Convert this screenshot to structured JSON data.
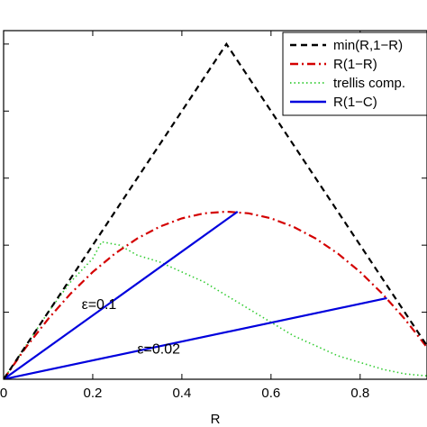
{
  "chart_data": {
    "type": "line",
    "title": "",
    "xlabel": "R",
    "ylabel": "",
    "xlim": [
      0,
      0.95
    ],
    "ylim": [
      0,
      0.52
    ],
    "xticks": [
      0,
      0.2,
      0.4,
      0.6,
      0.8
    ],
    "xtick_labels": [
      "0",
      "0.2",
      "0.4",
      "0.6",
      "0.8"
    ],
    "yticks": [
      0.1,
      0.2,
      0.3,
      0.4,
      0.5
    ],
    "grid": false,
    "legend_position": "top-right",
    "series": [
      {
        "name": "min(R,1−R)",
        "color": "#000000",
        "style": "dashed",
        "x": [
          0,
          0.5,
          1.0
        ],
        "y": [
          0,
          0.5,
          0
        ]
      },
      {
        "name": "R(1−R)",
        "color": "#d40000",
        "style": "dashdot",
        "x": [
          0,
          0.05,
          0.1,
          0.15,
          0.2,
          0.25,
          0.3,
          0.35,
          0.4,
          0.45,
          0.5,
          0.55,
          0.6,
          0.65,
          0.7,
          0.75,
          0.8,
          0.85,
          0.9,
          0.95,
          1.0
        ],
        "y": [
          0,
          0.0475,
          0.09,
          0.1275,
          0.16,
          0.1875,
          0.21,
          0.2275,
          0.24,
          0.2475,
          0.25,
          0.2475,
          0.24,
          0.2275,
          0.21,
          0.1875,
          0.16,
          0.1275,
          0.09,
          0.0475,
          0
        ]
      },
      {
        "name": "trellis comp.",
        "color": "#33cc33",
        "style": "dotted",
        "x": [
          0,
          0.05,
          0.1,
          0.15,
          0.2,
          0.22,
          0.26,
          0.3,
          0.35,
          0.4,
          0.45,
          0.5,
          0.55,
          0.6,
          0.65,
          0.7,
          0.75,
          0.8,
          0.85,
          0.9,
          0.95
        ],
        "y": [
          0,
          0.05,
          0.1,
          0.145,
          0.18,
          0.205,
          0.2,
          0.185,
          0.175,
          0.16,
          0.145,
          0.125,
          0.105,
          0.085,
          0.065,
          0.05,
          0.035,
          0.025,
          0.015,
          0.008,
          0.005
        ]
      },
      {
        "name": "R(1−C)",
        "color": "#0000dd",
        "style": "solid",
        "segments": [
          {
            "x": [
              0,
              0.525
            ],
            "y": [
              0,
              0.25
            ]
          },
          {
            "x": [
              0,
              0.86
            ],
            "y": [
              0,
              0.121
            ]
          }
        ]
      }
    ],
    "annotations": [
      {
        "text": "ε=0.1",
        "x": 0.175,
        "y": 0.105
      },
      {
        "text": "ε=0.02",
        "x": 0.3,
        "y": 0.038
      }
    ]
  }
}
